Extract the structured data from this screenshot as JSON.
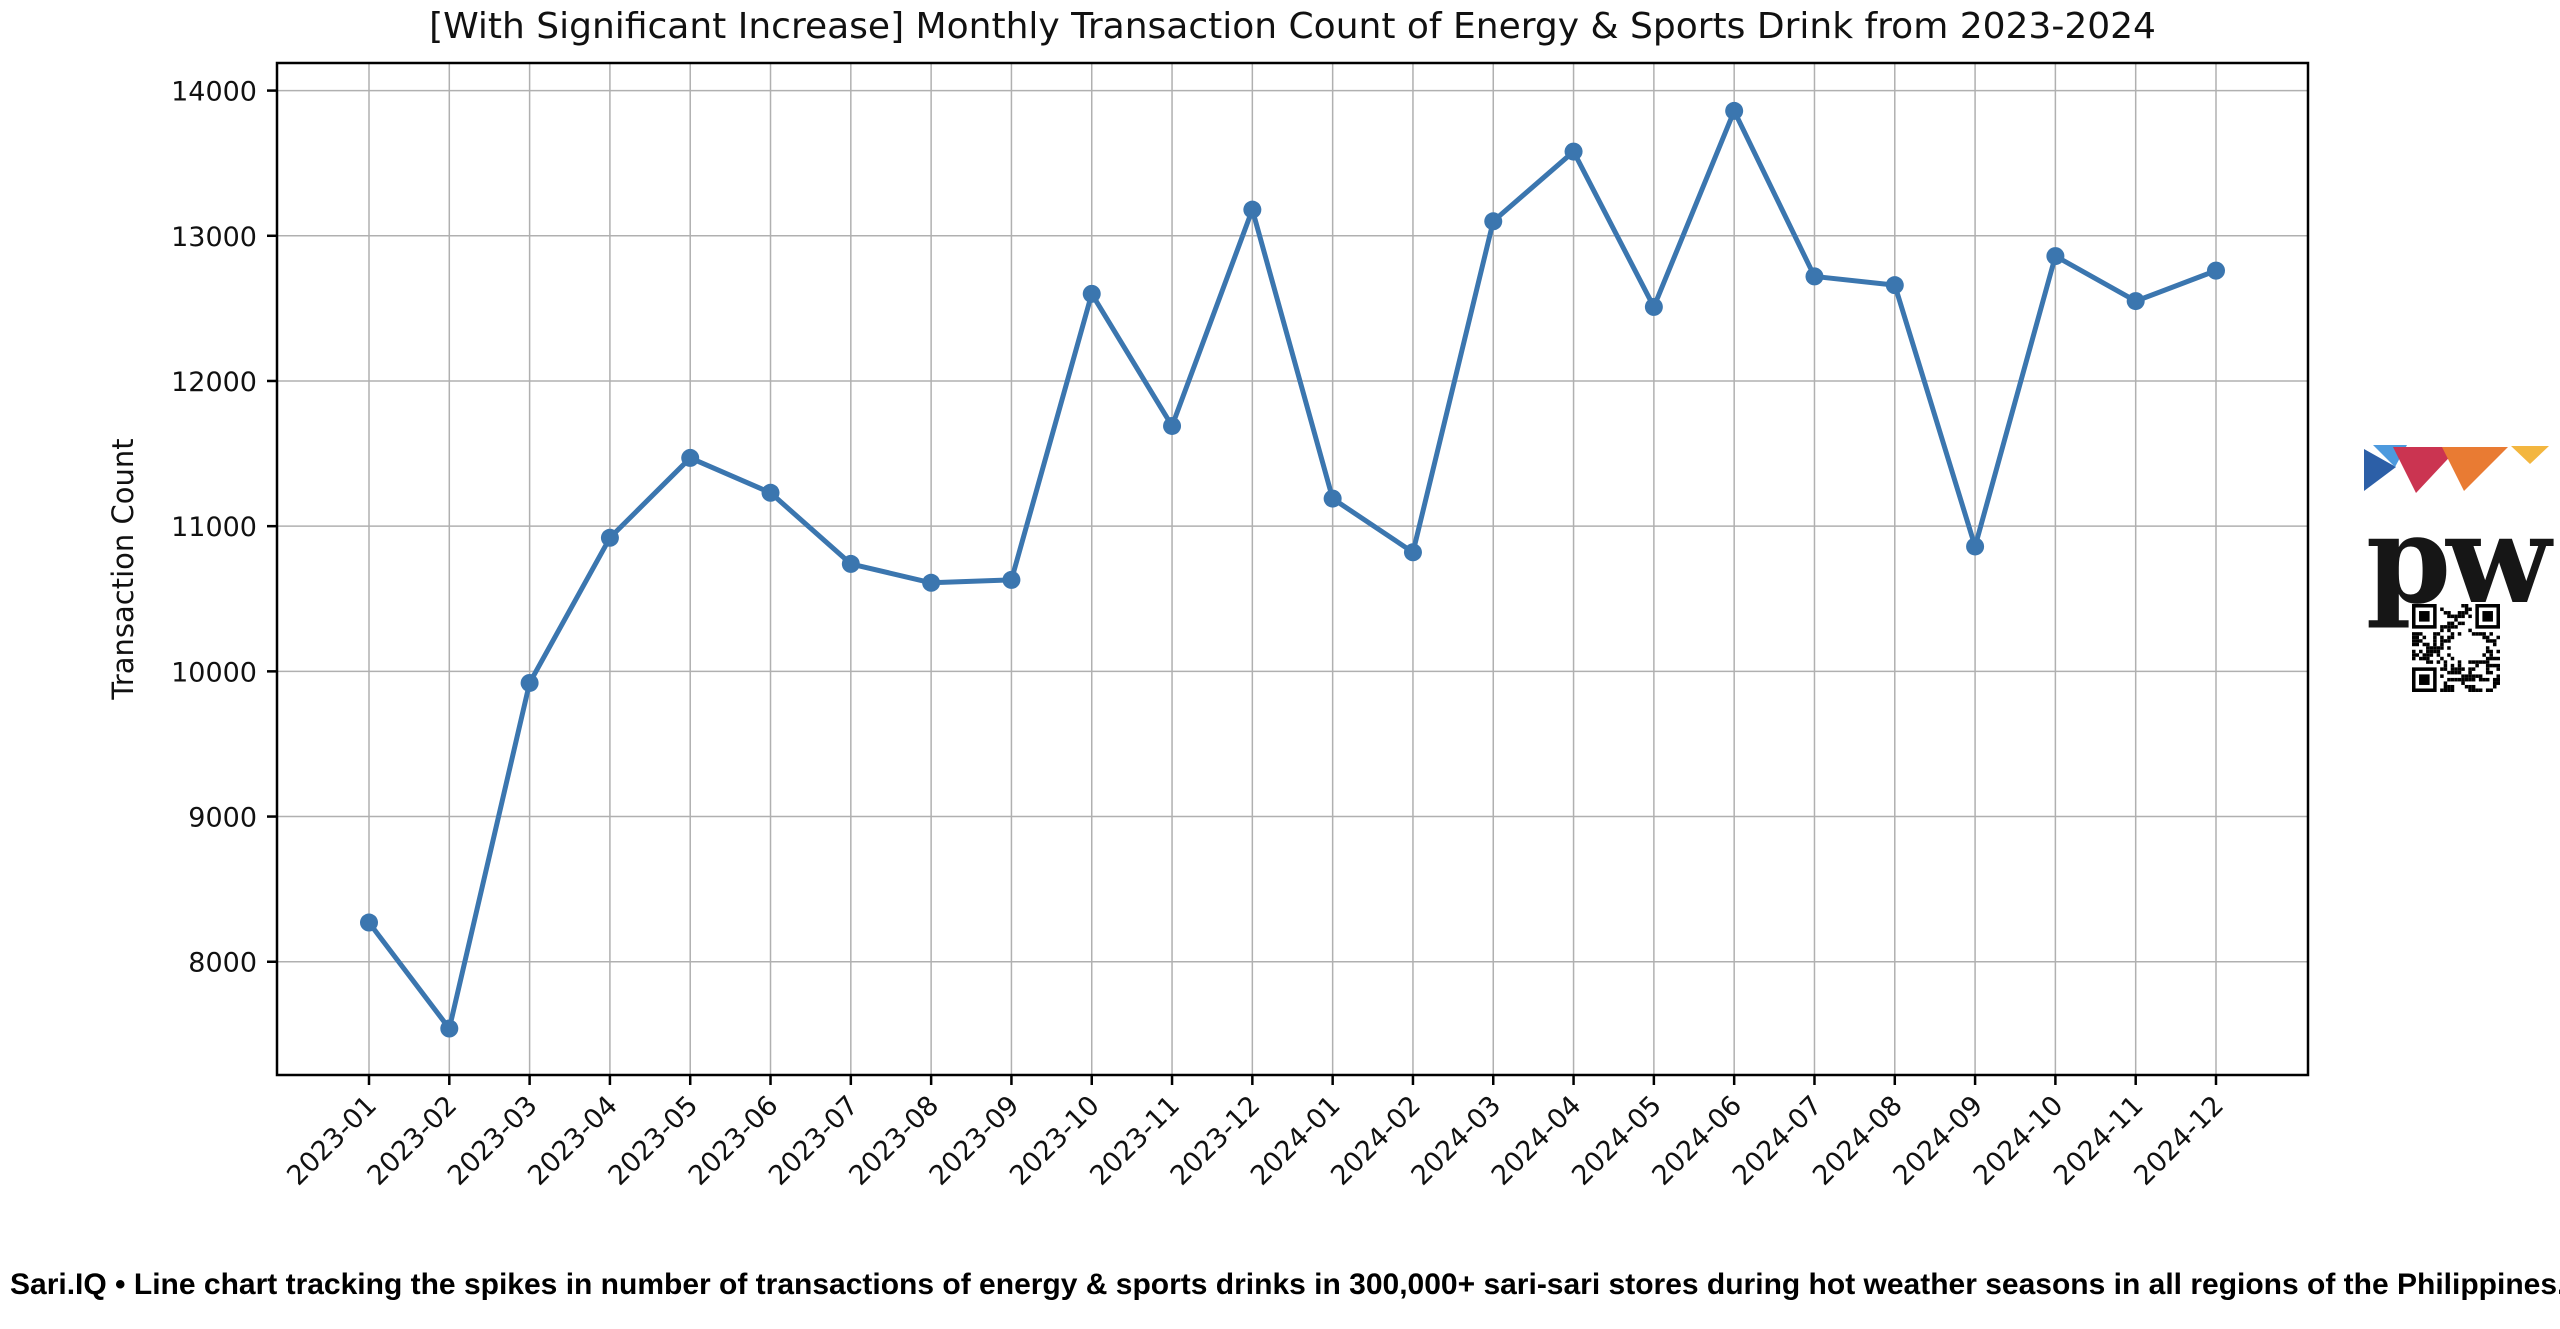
{
  "chart_data": {
    "type": "line",
    "title": "[With Significant Increase] Monthly Transaction Count of Energy & Sports Drink from 2023-2024",
    "xlabel": "",
    "ylabel": "Transaction Count",
    "categories": [
      "2023-01",
      "2023-02",
      "2023-03",
      "2023-04",
      "2023-05",
      "2023-06",
      "2023-07",
      "2023-08",
      "2023-09",
      "2023-10",
      "2023-11",
      "2023-12",
      "2024-01",
      "2024-02",
      "2024-03",
      "2024-04",
      "2024-05",
      "2024-06",
      "2024-07",
      "2024-08",
      "2024-09",
      "2024-10",
      "2024-11",
      "2024-12"
    ],
    "series": [
      {
        "name": "Transaction Count",
        "values": [
          8270,
          7540,
          9920,
          10920,
          11470,
          11230,
          10740,
          10610,
          10630,
          12600,
          11690,
          13180,
          11190,
          10820,
          13100,
          13580,
          12510,
          13860,
          12720,
          12660,
          10860,
          12860,
          12550,
          12760
        ]
      }
    ],
    "yticks": [
      8000,
      9000,
      10000,
      11000,
      12000,
      13000,
      14000
    ],
    "ylim": [
      7220,
      14190
    ],
    "grid": true,
    "legend": "none",
    "line_color": "#3b76af",
    "marker": "o",
    "grid_color": "#b0b0b0",
    "axis_color": "#000000"
  },
  "caption": {
    "text": "Sari.IQ • Line chart tracking the spikes in number of transactions of energy & sports drinks  in 300,000+ sari-sari stores during hot weather seasons in all regions of the Philippines."
  },
  "logo": {
    "wordmark": "pw",
    "triangle_colors": [
      "#2c5fa7",
      "#4d9ade",
      "#cb3451",
      "#e97b33",
      "#f3b63f"
    ]
  }
}
